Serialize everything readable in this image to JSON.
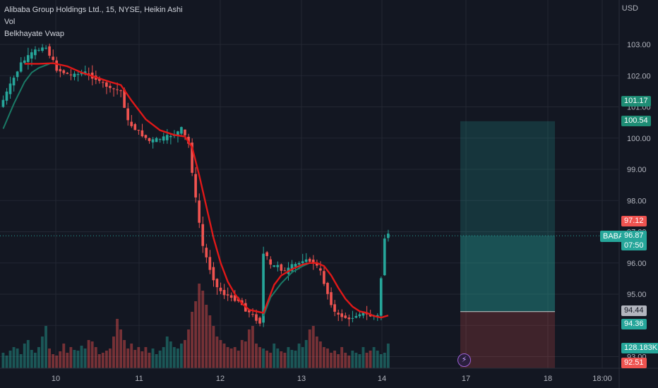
{
  "legend": {
    "title": "Alibaba Group Holdings Ltd., 15, NYSE, Heikin Ashi",
    "vol": "Vol",
    "indicator": "Belkhayate Vwap"
  },
  "currency": "USD",
  "ticker": "BABA",
  "colors": {
    "up": "#26a69a",
    "down": "#ef5350",
    "vwap": "#e01818",
    "vwap_fast": "#1a7a66",
    "bg": "#131722",
    "grid": "#232733"
  },
  "chart_data": {
    "type": "candlestick",
    "title": "Alibaba Group Holdings Ltd., 15, NYSE, Heikin Ashi",
    "ylim": [
      92.3,
      104.1
    ],
    "y_ticks": [
      "103.00",
      "102.00",
      "101.00",
      "100.00",
      "99.00",
      "98.00",
      "97.00",
      "96.00",
      "95.00",
      "94.00",
      "93.00"
    ],
    "x_ticks": [
      "10",
      "11",
      "12",
      "13",
      "14",
      "17",
      "18",
      "18:00"
    ],
    "price_path": [
      [
        0,
        101.0
      ],
      [
        6,
        102.4
      ],
      [
        10,
        102.8
      ],
      [
        13,
        102.9
      ],
      [
        16,
        102.2
      ],
      [
        20,
        102.0
      ],
      [
        24,
        102.1
      ],
      [
        27,
        101.9
      ],
      [
        31,
        101.6
      ],
      [
        34,
        101.5
      ],
      [
        36,
        100.5
      ],
      [
        39,
        100.2
      ],
      [
        42,
        99.9
      ],
      [
        46,
        100.0
      ],
      [
        49,
        100.1
      ],
      [
        51,
        100.3
      ],
      [
        53,
        99.8
      ],
      [
        55,
        98.0
      ],
      [
        57,
        96.5
      ],
      [
        59,
        95.8
      ],
      [
        61,
        95.2
      ],
      [
        63,
        95.0
      ],
      [
        65,
        94.9
      ],
      [
        67,
        94.8
      ],
      [
        69,
        94.5
      ],
      [
        71,
        94.3
      ],
      [
        73,
        94.1
      ],
      [
        74,
        96.4
      ],
      [
        76,
        95.9
      ],
      [
        78,
        95.9
      ],
      [
        80,
        95.7
      ],
      [
        82,
        95.9
      ],
      [
        84,
        96.0
      ],
      [
        86,
        96.1
      ],
      [
        88,
        96.05
      ],
      [
        90,
        95.7
      ],
      [
        92,
        95.0
      ],
      [
        94,
        94.4
      ],
      [
        96,
        94.3
      ],
      [
        98,
        94.2
      ],
      [
        100,
        94.3
      ],
      [
        102,
        94.4
      ],
      [
        104,
        94.3
      ],
      [
        106,
        94.3
      ],
      [
        108,
        96.87
      ]
    ],
    "volume": [
      22,
      18,
      25,
      30,
      28,
      20,
      35,
      40,
      26,
      22,
      30,
      45,
      60,
      28,
      20,
      18,
      24,
      35,
      22,
      30,
      26,
      25,
      32,
      28,
      40,
      38,
      30,
      20,
      22,
      25,
      28,
      45,
      70,
      55,
      40,
      28,
      35,
      26,
      30,
      24,
      30,
      22,
      28,
      20,
      25,
      30,
      45,
      38,
      30,
      28,
      35,
      40,
      55,
      80,
      95,
      120,
      110,
      90,
      75,
      60,
      45,
      40,
      35,
      30,
      28,
      30,
      25,
      40,
      38,
      55,
      60,
      35,
      30,
      28,
      25,
      22,
      35,
      28,
      24,
      22,
      30,
      26,
      25,
      35,
      30,
      40,
      55,
      60,
      45,
      38,
      30,
      28,
      22,
      25,
      20,
      30,
      22,
      18,
      25,
      22,
      20,
      30,
      22,
      25,
      30,
      25,
      20,
      22,
      35
    ],
    "vwap": [
      [
        6,
        102.38
      ],
      [
        10,
        102.38
      ],
      [
        14,
        102.4
      ],
      [
        18,
        102.3
      ],
      [
        22,
        102.1
      ],
      [
        26,
        101.95
      ],
      [
        30,
        101.8
      ],
      [
        33,
        101.7
      ],
      [
        36,
        101.2
      ],
      [
        40,
        100.6
      ],
      [
        44,
        100.25
      ],
      [
        48,
        100.1
      ],
      [
        51,
        100.05
      ],
      [
        53,
        99.7
      ],
      [
        55,
        98.8
      ],
      [
        57,
        97.8
      ],
      [
        59,
        96.8
      ],
      [
        61,
        96.0
      ],
      [
        63,
        95.4
      ],
      [
        65,
        95.0
      ],
      [
        67,
        94.7
      ],
      [
        69,
        94.5
      ],
      [
        71,
        94.45
      ],
      [
        73,
        94.4
      ],
      [
        76,
        95.3
      ],
      [
        78,
        95.6
      ],
      [
        81,
        95.8
      ],
      [
        84,
        95.95
      ],
      [
        86,
        96.0
      ],
      [
        88,
        96.0
      ],
      [
        90,
        95.9
      ],
      [
        92,
        95.6
      ],
      [
        94,
        95.2
      ],
      [
        96,
        94.85
      ],
      [
        98,
        94.6
      ],
      [
        100,
        94.45
      ],
      [
        102,
        94.4
      ],
      [
        104,
        94.3
      ],
      [
        106,
        94.25
      ],
      [
        108,
        94.32
      ]
    ],
    "vwap_fast": [
      [
        0,
        100.3
      ],
      [
        3,
        101.1
      ],
      [
        6,
        101.8
      ],
      [
        8,
        102.1
      ],
      [
        10,
        102.25
      ],
      [
        13,
        102.38
      ]
    ],
    "vwap_fast2": [
      [
        73,
        94.3
      ],
      [
        75,
        94.9
      ],
      [
        78,
        95.35
      ],
      [
        81,
        95.7
      ],
      [
        84,
        95.9
      ],
      [
        86,
        96.0
      ]
    ],
    "position": {
      "entry": 94.44,
      "target": 100.54,
      "stop": 92.51
    }
  },
  "price_scale_labels": {
    "p101_17": "101.17",
    "p100_54": "100.54",
    "p97_12": "97.12",
    "p96_87": "96.87",
    "countdown": "07:50",
    "p94_44": "94.44",
    "p94_36": "94.36",
    "vol": "128.183K",
    "p92_51": "92.51"
  },
  "bolt_glyph": "⚡"
}
